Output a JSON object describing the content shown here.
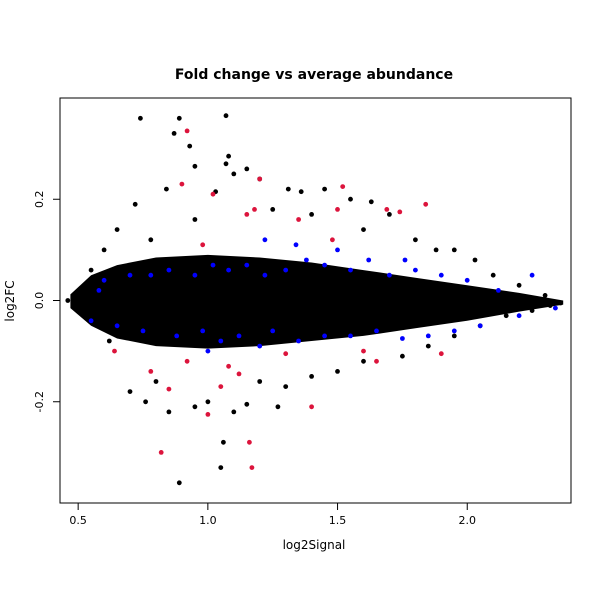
{
  "chart_data": {
    "type": "scatter",
    "title": "Fold change vs average abundance",
    "xlabel": "log2Signal",
    "ylabel": "log2FC",
    "xlim": [
      0.43,
      2.4
    ],
    "ylim": [
      -0.4,
      0.4
    ],
    "x_ticks": [
      0.5,
      1.0,
      1.5,
      2.0
    ],
    "x_tick_labels": [
      "0.5",
      "1.0",
      "1.5",
      "2.0"
    ],
    "y_ticks": [
      -0.2,
      0.0,
      0.2
    ],
    "y_tick_labels": [
      "-0.2",
      "0.0",
      "0.2"
    ],
    "grid": false,
    "legend": "none",
    "series": [
      {
        "color": "#000000",
        "points": [
          [
            0.74,
            0.36
          ],
          [
            0.89,
            0.36
          ],
          [
            1.07,
            0.365
          ],
          [
            0.87,
            0.33
          ],
          [
            0.93,
            0.305
          ],
          [
            1.08,
            0.285
          ],
          [
            1.07,
            0.27
          ],
          [
            1.1,
            0.25
          ],
          [
            1.15,
            0.26
          ],
          [
            0.95,
            0.265
          ],
          [
            1.2,
            0.24
          ],
          [
            0.84,
            0.22
          ],
          [
            1.31,
            0.22
          ],
          [
            1.36,
            0.215
          ],
          [
            1.45,
            0.22
          ],
          [
            0.72,
            0.19
          ],
          [
            1.03,
            0.215
          ],
          [
            1.55,
            0.2
          ],
          [
            1.63,
            0.195
          ],
          [
            1.7,
            0.17
          ],
          [
            0.65,
            0.14
          ],
          [
            0.95,
            0.16
          ],
          [
            1.25,
            0.18
          ],
          [
            1.4,
            0.17
          ],
          [
            1.6,
            0.14
          ],
          [
            1.8,
            0.12
          ],
          [
            1.88,
            0.1
          ],
          [
            1.95,
            0.1
          ],
          [
            2.03,
            0.08
          ],
          [
            0.6,
            0.1
          ],
          [
            0.78,
            0.12
          ],
          [
            0.55,
            0.06
          ],
          [
            2.1,
            0.05
          ],
          [
            2.2,
            0.03
          ],
          [
            2.3,
            0.01
          ],
          [
            2.36,
            -0.005
          ],
          [
            2.32,
            -0.01
          ],
          [
            2.25,
            -0.02
          ],
          [
            2.15,
            -0.03
          ],
          [
            2.05,
            -0.05
          ],
          [
            1.95,
            -0.07
          ],
          [
            1.85,
            -0.09
          ],
          [
            1.75,
            -0.11
          ],
          [
            1.6,
            -0.12
          ],
          [
            1.5,
            -0.14
          ],
          [
            1.4,
            -0.15
          ],
          [
            1.3,
            -0.17
          ],
          [
            0.7,
            -0.18
          ],
          [
            0.76,
            -0.2
          ],
          [
            1.0,
            -0.2
          ],
          [
            0.85,
            -0.22
          ],
          [
            0.95,
            -0.21
          ],
          [
            1.1,
            -0.22
          ],
          [
            1.15,
            -0.205
          ],
          [
            1.27,
            -0.21
          ],
          [
            1.06,
            -0.28
          ],
          [
            1.05,
            -0.33
          ],
          [
            0.89,
            -0.36
          ],
          [
            0.8,
            -0.16
          ],
          [
            1.2,
            -0.16
          ],
          [
            0.62,
            -0.08
          ],
          [
            0.52,
            -0.03
          ],
          [
            0.48,
            -0.01
          ],
          [
            0.46,
            0.0
          ]
        ]
      },
      {
        "color": "#0000ff",
        "points": [
          [
            0.6,
            0.04
          ],
          [
            0.7,
            0.05
          ],
          [
            0.78,
            0.05
          ],
          [
            0.85,
            0.06
          ],
          [
            0.95,
            0.05
          ],
          [
            1.02,
            0.07
          ],
          [
            1.08,
            0.06
          ],
          [
            1.15,
            0.07
          ],
          [
            1.22,
            0.05
          ],
          [
            1.3,
            0.06
          ],
          [
            1.38,
            0.08
          ],
          [
            1.45,
            0.07
          ],
          [
            1.55,
            0.06
          ],
          [
            1.62,
            0.08
          ],
          [
            1.7,
            0.05
          ],
          [
            1.8,
            0.06
          ],
          [
            1.9,
            0.05
          ],
          [
            2.0,
            0.04
          ],
          [
            2.12,
            0.02
          ],
          [
            2.25,
            0.05
          ],
          [
            2.34,
            -0.015
          ],
          [
            0.55,
            -0.04
          ],
          [
            0.65,
            -0.05
          ],
          [
            0.75,
            -0.06
          ],
          [
            0.88,
            -0.07
          ],
          [
            0.98,
            -0.06
          ],
          [
            1.05,
            -0.08
          ],
          [
            1.12,
            -0.07
          ],
          [
            1.25,
            -0.06
          ],
          [
            1.35,
            -0.08
          ],
          [
            1.45,
            -0.07
          ],
          [
            1.55,
            -0.07
          ],
          [
            1.65,
            -0.06
          ],
          [
            1.75,
            -0.075
          ],
          [
            1.85,
            -0.07
          ],
          [
            1.95,
            -0.06
          ],
          [
            2.05,
            -0.05
          ],
          [
            2.2,
            -0.03
          ],
          [
            0.58,
            0.02
          ],
          [
            1.22,
            0.12
          ],
          [
            1.34,
            0.11
          ],
          [
            1.5,
            0.1
          ],
          [
            1.76,
            0.08
          ],
          [
            1.0,
            -0.1
          ],
          [
            1.2,
            -0.09
          ]
        ]
      },
      {
        "color": "#dc143c",
        "points": [
          [
            0.92,
            0.335
          ],
          [
            1.52,
            0.225
          ],
          [
            1.84,
            0.19
          ],
          [
            1.69,
            0.18
          ],
          [
            1.74,
            0.175
          ],
          [
            1.2,
            0.24
          ],
          [
            0.9,
            0.23
          ],
          [
            1.02,
            0.21
          ],
          [
            1.15,
            0.17
          ],
          [
            1.35,
            0.16
          ],
          [
            1.5,
            0.18
          ],
          [
            1.48,
            0.12
          ],
          [
            1.18,
            0.18
          ],
          [
            0.98,
            0.11
          ],
          [
            1.65,
            -0.12
          ],
          [
            1.9,
            -0.105
          ],
          [
            0.82,
            -0.3
          ],
          [
            1.17,
            -0.33
          ],
          [
            1.16,
            -0.28
          ],
          [
            1.4,
            -0.21
          ],
          [
            1.0,
            -0.225
          ],
          [
            0.85,
            -0.175
          ],
          [
            1.05,
            -0.17
          ],
          [
            1.12,
            -0.145
          ],
          [
            1.3,
            -0.105
          ],
          [
            0.78,
            -0.14
          ],
          [
            0.92,
            -0.12
          ],
          [
            1.08,
            -0.13
          ],
          [
            1.6,
            -0.1
          ],
          [
            0.64,
            -0.1
          ]
        ]
      }
    ]
  }
}
